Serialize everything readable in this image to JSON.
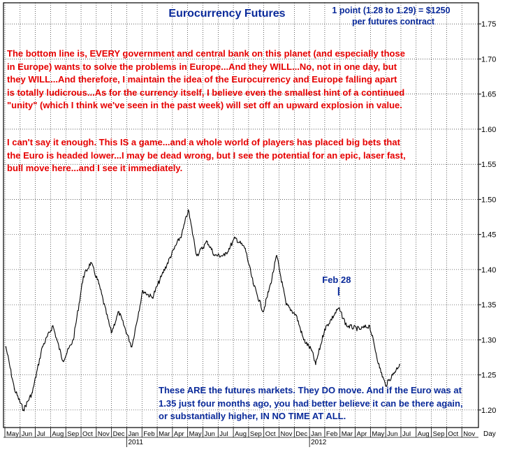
{
  "chart_data": {
    "type": "line",
    "title": "Eurocurrency Futures",
    "subtitle_lines": [
      "1 point (1.28 to 1.29) = $1250",
      "per futures contract"
    ],
    "ylim": [
      1.175,
      1.78
    ],
    "y_ticks": [
      "1.20",
      "1.25",
      "1.30",
      "1.35",
      "1.40",
      "1.45",
      "1.50",
      "1.55",
      "1.60",
      "1.65",
      "1.70",
      "1.75"
    ],
    "y_axis_label": "",
    "x_axis_unit": "Day",
    "x_months": [
      "May",
      "Jun",
      "Jul",
      "Aug",
      "Sep",
      "Oct",
      "Nov",
      "Dec",
      "Jan",
      "Feb",
      "Mar",
      "Apr",
      "May",
      "Jun",
      "Jul",
      "Aug",
      "Sep",
      "Oct",
      "Nov",
      "Dec",
      "Jan",
      "Feb",
      "Mar",
      "Apr",
      "May",
      "Jun",
      "Jul",
      "Aug",
      "Sep",
      "Oct",
      "Nov"
    ],
    "x_years": [
      "2011",
      "2012"
    ],
    "grid": true,
    "series": [
      {
        "color": "#000000",
        "x": [
          "2010-05-03",
          "2010-05-20",
          "2010-06-07",
          "2010-06-25",
          "2010-07-15",
          "2010-08-05",
          "2010-08-25",
          "2010-09-15",
          "2010-10-05",
          "2010-10-20",
          "2010-11-05",
          "2010-11-30",
          "2010-12-15",
          "2011-01-10",
          "2011-02-01",
          "2011-02-20",
          "2011-03-10",
          "2011-04-05",
          "2011-04-20",
          "2011-05-03",
          "2011-05-20",
          "2011-06-10",
          "2011-06-25",
          "2011-07-15",
          "2011-08-05",
          "2011-08-25",
          "2011-09-10",
          "2011-09-30",
          "2011-10-15",
          "2011-10-27",
          "2011-11-15",
          "2011-12-05",
          "2011-12-20",
          "2012-01-05",
          "2012-01-13",
          "2012-01-31",
          "2012-02-28",
          "2012-03-15",
          "2012-04-10",
          "2012-04-30",
          "2012-05-20",
          "2012-06-01",
          "2012-06-15",
          "2012-06-29"
        ],
        "values": [
          1.29,
          1.23,
          1.2,
          1.225,
          1.29,
          1.32,
          1.27,
          1.3,
          1.39,
          1.41,
          1.38,
          1.31,
          1.34,
          1.29,
          1.37,
          1.36,
          1.39,
          1.43,
          1.45,
          1.485,
          1.42,
          1.44,
          1.42,
          1.42,
          1.445,
          1.43,
          1.38,
          1.34,
          1.38,
          1.42,
          1.35,
          1.335,
          1.3,
          1.285,
          1.265,
          1.315,
          1.345,
          1.32,
          1.315,
          1.32,
          1.26,
          1.235,
          1.25,
          1.265
        ]
      }
    ],
    "annotations": [
      {
        "text": "Feb 28",
        "x": "2012-02-28",
        "y": 1.365
      }
    ]
  },
  "notes": {
    "paragraph_1": "The bottom line is, EVERY government and central bank on this planet (and especially those in Europe) wants to solve the problems in Europe...And they WILL...No, not in one day, but they WILL...And therefore, I maintain the idea of the Eurocurrency and Europe falling apart is totally ludicrous...As for the currency itself, I believe even the smallest hint of a continued \"unity\" (which I think we've seen in the past week) will set off an upward explosion in value.",
    "paragraph_2": "I can't say it enough. This IS a game...and a whole world of players has placed big bets that the Euro is headed lower...I may be dead wrong, but I see the potential for an epic, laser fast, bull move here...and I see it immediately.",
    "paragraph_3": "These ARE the futures markets. They DO move. And if the Euro was at 1.35 just four months ago, you had better believe it can be there again, or substantially higher, IN NO TIME AT ALL."
  },
  "colors": {
    "title": "#0a2a9a",
    "red_text": "#e60000",
    "blue_text": "#0a2a9a",
    "grid": "#000000",
    "line": "#000000"
  }
}
